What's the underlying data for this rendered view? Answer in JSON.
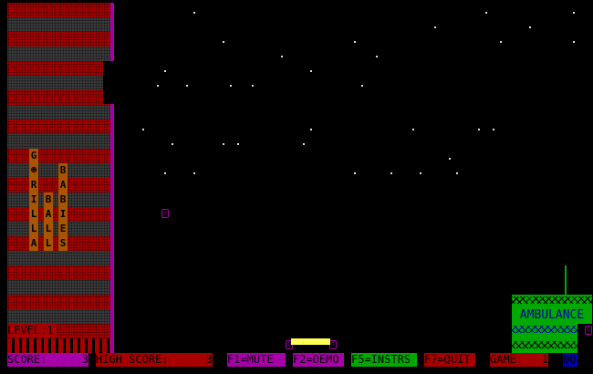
{
  "game": {
    "building_banners": [
      {
        "letters": [
          "G",
          "☻",
          "R",
          "I",
          "L",
          "L",
          "A"
        ]
      },
      {
        "letters": [
          "B",
          "A",
          "L",
          "L"
        ]
      },
      {
        "letters": [
          "B",
          "A",
          "B",
          "I",
          "E",
          "S"
        ]
      }
    ],
    "level_label": "LEVEL:1",
    "ambulance_label": "AMBULANCE"
  },
  "status_bar": {
    "score_label": "SCORE:",
    "score": "3",
    "high_score_label": "HIGH SCORE:",
    "high_score": "3",
    "f1": "F1=MUTE",
    "f2": "F2=DEMO",
    "f5": "F5=INSTRS",
    "f7": "F7=QUIT",
    "game_label": "GAME:",
    "game": "1",
    "counter": "00"
  },
  "colors": {
    "red": "#a80000",
    "magenta": "#a800a8",
    "green": "#00a800",
    "blue": "#0000a8",
    "yellow": "#ffff54",
    "orange": "#a85400"
  }
}
